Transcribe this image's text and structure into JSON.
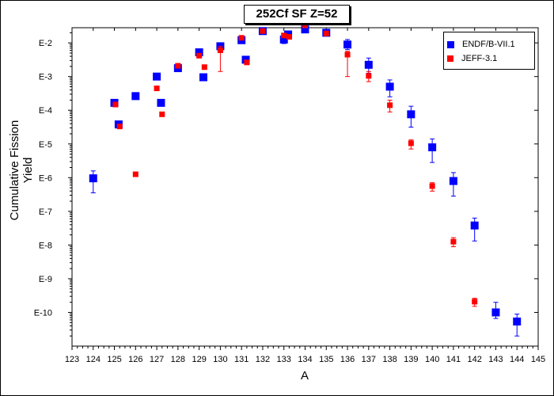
{
  "chart_data": {
    "type": "scatter",
    "title": "252Cf SF Z=52",
    "xlabel": "A",
    "ylabel": "Cumulative Fission Yield",
    "xlim": [
      123,
      145
    ],
    "ylim_log10": [
      -11,
      -1.55
    ],
    "x_ticks": [
      "123",
      "124",
      "125",
      "126",
      "127",
      "128",
      "129",
      "130",
      "131",
      "132",
      "133",
      "134",
      "135",
      "136",
      "137",
      "138",
      "139",
      "140",
      "141",
      "142",
      "143",
      "144",
      "145"
    ],
    "y_ticks": [
      {
        "label": "E-2",
        "exp": -2
      },
      {
        "label": "E-3",
        "exp": -3
      },
      {
        "label": "E-4",
        "exp": -4
      },
      {
        "label": "E-5",
        "exp": -5
      },
      {
        "label": "E-6",
        "exp": -6
      },
      {
        "label": "E-7",
        "exp": -7
      },
      {
        "label": "E-8",
        "exp": -8
      },
      {
        "label": "E-9",
        "exp": -9
      },
      {
        "label": "E-10",
        "exp": -10
      }
    ],
    "legend_position": "top-right",
    "series": [
      {
        "name": "ENDF/B-VII.1",
        "color": "#0000ff",
        "marker": "square-large",
        "points": [
          {
            "x": 124.0,
            "log10y": -6.02,
            "err_lo": -6.45,
            "err_hi": -5.8
          },
          {
            "x": 125.0,
            "log10y": -3.78
          },
          {
            "x": 125.2,
            "log10y": -4.42
          },
          {
            "x": 126.0,
            "log10y": -3.58
          },
          {
            "x": 127.0,
            "log10y": -3.0
          },
          {
            "x": 127.2,
            "log10y": -3.78
          },
          {
            "x": 128.0,
            "log10y": -2.75
          },
          {
            "x": 129.0,
            "log10y": -2.28
          },
          {
            "x": 129.2,
            "log10y": -3.02
          },
          {
            "x": 130.0,
            "log10y": -2.1,
            "err_lo": -2.2,
            "err_hi": -2.0
          },
          {
            "x": 131.0,
            "log10y": -1.92
          },
          {
            "x": 131.2,
            "log10y": -2.5
          },
          {
            "x": 132.0,
            "log10y": -1.65
          },
          {
            "x": 133.0,
            "log10y": -1.9,
            "err_lo": -2.02,
            "err_hi": -1.8
          },
          {
            "x": 133.2,
            "log10y": -1.75
          },
          {
            "x": 134.0,
            "log10y": -1.6
          },
          {
            "x": 135.0,
            "log10y": -1.7
          },
          {
            "x": 136.0,
            "log10y": -2.05,
            "err_lo": -2.2,
            "err_hi": -1.9
          },
          {
            "x": 137.0,
            "log10y": -2.65,
            "err_lo": -2.9,
            "err_hi": -2.45
          },
          {
            "x": 138.0,
            "log10y": -3.3,
            "err_lo": -3.6,
            "err_hi": -3.1
          },
          {
            "x": 139.0,
            "log10y": -4.12,
            "err_lo": -4.5,
            "err_hi": -3.88
          },
          {
            "x": 140.0,
            "log10y": -5.1,
            "err_lo": -5.55,
            "err_hi": -4.85
          },
          {
            "x": 141.0,
            "log10y": -6.1,
            "err_lo": -6.55,
            "err_hi": -5.85
          },
          {
            "x": 142.0,
            "log10y": -7.42,
            "err_lo": -7.88,
            "err_hi": -7.2
          },
          {
            "x": 143.0,
            "log10y": -10.0,
            "err_lo": -10.18,
            "err_hi": -9.7
          },
          {
            "x": 144.0,
            "log10y": -10.27,
            "err_lo": -10.7,
            "err_hi": -10.05
          }
        ]
      },
      {
        "name": "JEFF-3.1",
        "color": "#ff0000",
        "marker": "square-small",
        "points": [
          {
            "x": 125.05,
            "log10y": -3.83
          },
          {
            "x": 125.25,
            "log10y": -4.48
          },
          {
            "x": 126.0,
            "log10y": -5.9
          },
          {
            "x": 127.0,
            "log10y": -3.35
          },
          {
            "x": 127.25,
            "log10y": -4.12
          },
          {
            "x": 128.0,
            "log10y": -2.68
          },
          {
            "x": 129.0,
            "log10y": -2.38
          },
          {
            "x": 129.25,
            "log10y": -2.72
          },
          {
            "x": 130.0,
            "log10y": -2.22,
            "err_lo": -2.85,
            "err_hi": -2.1
          },
          {
            "x": 131.0,
            "log10y": -1.85
          },
          {
            "x": 131.25,
            "log10y": -2.58
          },
          {
            "x": 132.0,
            "log10y": -1.65
          },
          {
            "x": 133.0,
            "log10y": -1.78
          },
          {
            "x": 133.25,
            "log10y": -1.82
          },
          {
            "x": 134.0,
            "log10y": -1.48
          },
          {
            "x": 135.0,
            "log10y": -1.72
          },
          {
            "x": 136.0,
            "log10y": -2.35,
            "err_lo": -3.0,
            "err_hi": -2.25
          },
          {
            "x": 137.0,
            "log10y": -2.98,
            "err_lo": -3.15,
            "err_hi": -2.85
          },
          {
            "x": 138.0,
            "log10y": -3.85,
            "err_lo": -4.05,
            "err_hi": -3.7
          },
          {
            "x": 139.0,
            "log10y": -4.98,
            "err_lo": -5.15,
            "err_hi": -4.88
          },
          {
            "x": 140.0,
            "log10y": -6.25,
            "err_lo": -6.4,
            "err_hi": -6.15
          },
          {
            "x": 141.0,
            "log10y": -7.9,
            "err_lo": -8.05,
            "err_hi": -7.78
          },
          {
            "x": 142.0,
            "log10y": -9.68,
            "err_lo": -9.82,
            "err_hi": -9.58
          }
        ]
      }
    ]
  }
}
